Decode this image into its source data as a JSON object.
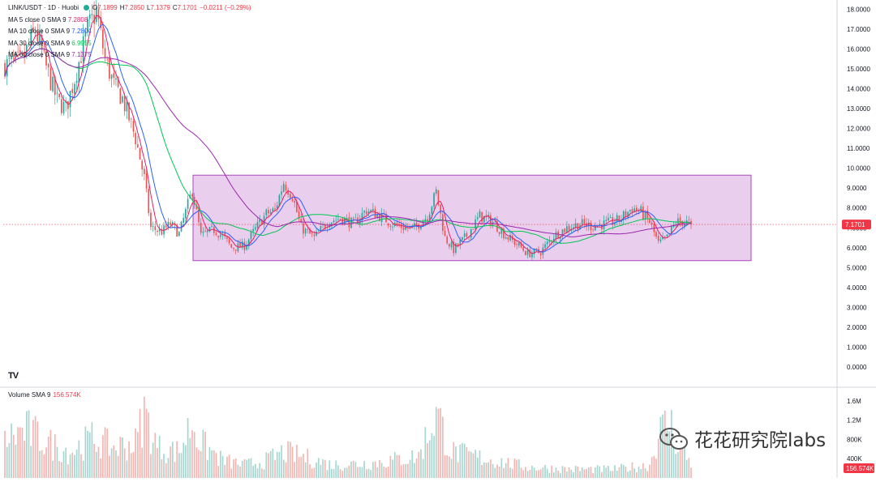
{
  "header": {
    "symbol": "LINK/USDT · 1D · Huobi",
    "ohlc": [
      {
        "key": "O",
        "value": "7.1899"
      },
      {
        "key": "H",
        "value": "7.2850"
      },
      {
        "key": "L",
        "value": "7.1379"
      },
      {
        "key": "C",
        "value": "7.1701"
      },
      {
        "key": "",
        "value": "−0.0211 (−0.29%)"
      }
    ]
  },
  "moving_averages": [
    {
      "label": "MA 5 close 0 SMA 9",
      "value": "7.2808",
      "color": "#e91e63"
    },
    {
      "label": "MA 10 close 0 SMA 9",
      "value": "7.2804",
      "color": "#2962ff"
    },
    {
      "label": "MA 30 close 0 SMA 9",
      "value": "6.9955",
      "color": "#00c853"
    },
    {
      "label": "MA 60 close 0 SMA 9",
      "value": "7.1375",
      "color": "#9c27b0"
    }
  ],
  "price_axis": {
    "ticks": [
      "18.0000",
      "17.0000",
      "16.0000",
      "15.0000",
      "14.0000",
      "13.0000",
      "12.0000",
      "11.0000",
      "10.0000",
      "9.0000",
      "8.0000",
      "7.0000",
      "6.0000",
      "5.0000",
      "4.0000",
      "3.0000",
      "2.0000",
      "1.0000",
      "0.0000"
    ],
    "last_price_label": "7.1701"
  },
  "volume_axis": {
    "ticks": [
      "1.6M",
      "1.2M",
      "800K",
      "400K"
    ],
    "current_label": "156.574K"
  },
  "volume_legend": {
    "label": "Volume SMA 9",
    "value": "156.574K"
  },
  "watermark": {
    "text": "花花研究院labs"
  },
  "logo": {
    "text": "TV"
  },
  "colors": {
    "up": "#26a69a",
    "down": "#ef5350",
    "range_box_fill": "#e1bee7",
    "range_box_border": "#ab47bc",
    "last_price": "#f23645"
  },
  "chart_data": {
    "type": "candlestick",
    "symbol": "LINK/USDT",
    "interval": "1D",
    "ylim": [
      0,
      18.3
    ],
    "range_box": {
      "low": 5.35,
      "high": 9.65
    },
    "last_close": 7.1701,
    "trend_keypoints": [
      [
        0,
        15.2
      ],
      [
        8,
        15.4
      ],
      [
        14,
        17.0
      ],
      [
        18,
        15.4
      ],
      [
        24,
        13.4
      ],
      [
        28,
        13.0
      ],
      [
        32,
        14.5
      ],
      [
        38,
        17.0
      ],
      [
        42,
        17.9
      ],
      [
        46,
        15.5
      ],
      [
        50,
        14.2
      ],
      [
        54,
        13.5
      ],
      [
        60,
        11.5
      ],
      [
        64,
        9.5
      ],
      [
        67,
        7.0
      ],
      [
        72,
        6.8
      ],
      [
        76,
        7.2
      ],
      [
        80,
        6.7
      ],
      [
        86,
        8.9
      ],
      [
        90,
        6.6
      ],
      [
        96,
        6.9
      ],
      [
        100,
        6.6
      ],
      [
        104,
        6.0
      ],
      [
        110,
        6.1
      ],
      [
        116,
        7.1
      ],
      [
        120,
        7.7
      ],
      [
        124,
        7.9
      ],
      [
        128,
        9.3
      ],
      [
        132,
        8.6
      ],
      [
        136,
        7.0
      ],
      [
        142,
        6.5
      ],
      [
        148,
        7.3
      ],
      [
        154,
        7.5
      ],
      [
        160,
        7.2
      ],
      [
        166,
        7.9
      ],
      [
        172,
        7.6
      ],
      [
        178,
        7.2
      ],
      [
        184,
        7.0
      ],
      [
        188,
        7.0
      ],
      [
        194,
        7.6
      ],
      [
        198,
        8.8
      ],
      [
        202,
        6.5
      ],
      [
        206,
        5.9
      ],
      [
        212,
        6.6
      ],
      [
        218,
        7.6
      ],
      [
        224,
        7.3
      ],
      [
        230,
        6.6
      ],
      [
        236,
        6.1
      ],
      [
        240,
        5.7
      ],
      [
        246,
        5.8
      ],
      [
        252,
        6.6
      ],
      [
        258,
        7.0
      ],
      [
        264,
        7.2
      ],
      [
        270,
        7.1
      ],
      [
        276,
        7.2
      ],
      [
        282,
        7.4
      ],
      [
        288,
        8.0
      ],
      [
        292,
        7.8
      ],
      [
        296,
        7.3
      ],
      [
        300,
        6.2
      ],
      [
        304,
        6.5
      ],
      [
        308,
        7.3
      ],
      [
        312,
        7.3
      ],
      [
        315,
        7.17
      ]
    ],
    "volume_keypoints": [
      [
        0,
        0.9
      ],
      [
        10,
        1.1
      ],
      [
        20,
        0.8
      ],
      [
        30,
        0.6
      ],
      [
        40,
        0.9
      ],
      [
        50,
        0.7
      ],
      [
        60,
        0.8
      ],
      [
        64,
        1.5
      ],
      [
        70,
        0.7
      ],
      [
        80,
        0.6
      ],
      [
        86,
        1.3
      ],
      [
        90,
        0.8
      ],
      [
        100,
        0.4
      ],
      [
        110,
        0.3
      ],
      [
        120,
        0.4
      ],
      [
        128,
        0.6
      ],
      [
        136,
        0.5
      ],
      [
        150,
        0.3
      ],
      [
        170,
        0.35
      ],
      [
        190,
        0.5
      ],
      [
        198,
        1.5
      ],
      [
        205,
        0.6
      ],
      [
        220,
        0.45
      ],
      [
        240,
        0.25
      ],
      [
        260,
        0.2
      ],
      [
        280,
        0.2
      ],
      [
        296,
        0.3
      ],
      [
        300,
        1.0
      ],
      [
        305,
        1.3
      ],
      [
        310,
        0.7
      ],
      [
        315,
        0.35
      ]
    ]
  }
}
